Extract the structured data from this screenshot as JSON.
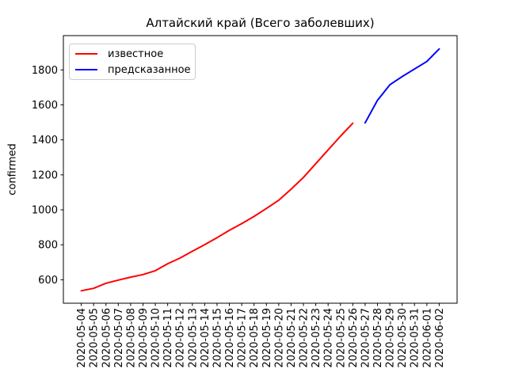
{
  "figure": {
    "title": "Алтайский край (Всего заболевших)",
    "ylabel": "confirmed",
    "background": "#ffffff"
  },
  "legend": {
    "items": [
      {
        "label": "известное",
        "color": "#ff0000"
      },
      {
        "label": "предсказанное",
        "color": "#0000ff"
      }
    ]
  },
  "chart_data": {
    "type": "line",
    "title": "Алтайский край (Всего заболевших)",
    "xlabel": "",
    "ylabel": "confirmed",
    "grid": false,
    "legend_position": "upper left",
    "x_tick_labels": [
      "2020-05-04",
      "2020-05-05",
      "2020-05-06",
      "2020-05-07",
      "2020-05-08",
      "2020-05-09",
      "2020-05-10",
      "2020-05-11",
      "2020-05-12",
      "2020-05-13",
      "2020-05-14",
      "2020-05-15",
      "2020-05-16",
      "2020-05-17",
      "2020-05-18",
      "2020-05-19",
      "2020-05-20",
      "2020-05-21",
      "2020-05-22",
      "2020-05-23",
      "2020-05-24",
      "2020-05-25",
      "2020-05-26",
      "2020-05-27",
      "2020-05-28",
      "2020-05-29",
      "2020-05-30",
      "2020-05-31",
      "2020-06-01",
      "2020-06-02"
    ],
    "y_ticks": [
      600,
      800,
      1000,
      1200,
      1400,
      1600,
      1800
    ],
    "x_index_range": [
      -1.45,
      30.45
    ],
    "ylim": [
      466,
      1996
    ],
    "series": [
      {
        "name": "известное",
        "color": "#ff0000",
        "start_index": 0,
        "values": [
          537,
          551,
          580,
          598,
          615,
          630,
          652,
          692,
          724,
          763,
          801,
          841,
          883,
          921,
          962,
          1008,
          1055,
          1118,
          1185,
          1264,
          1343,
          1421,
          1495
        ]
      },
      {
        "name": "предсказанное",
        "color": "#0000ff",
        "start_index": 23,
        "values": [
          1497,
          1626,
          1715,
          1762,
          1805,
          1848,
          1920
        ]
      }
    ]
  }
}
